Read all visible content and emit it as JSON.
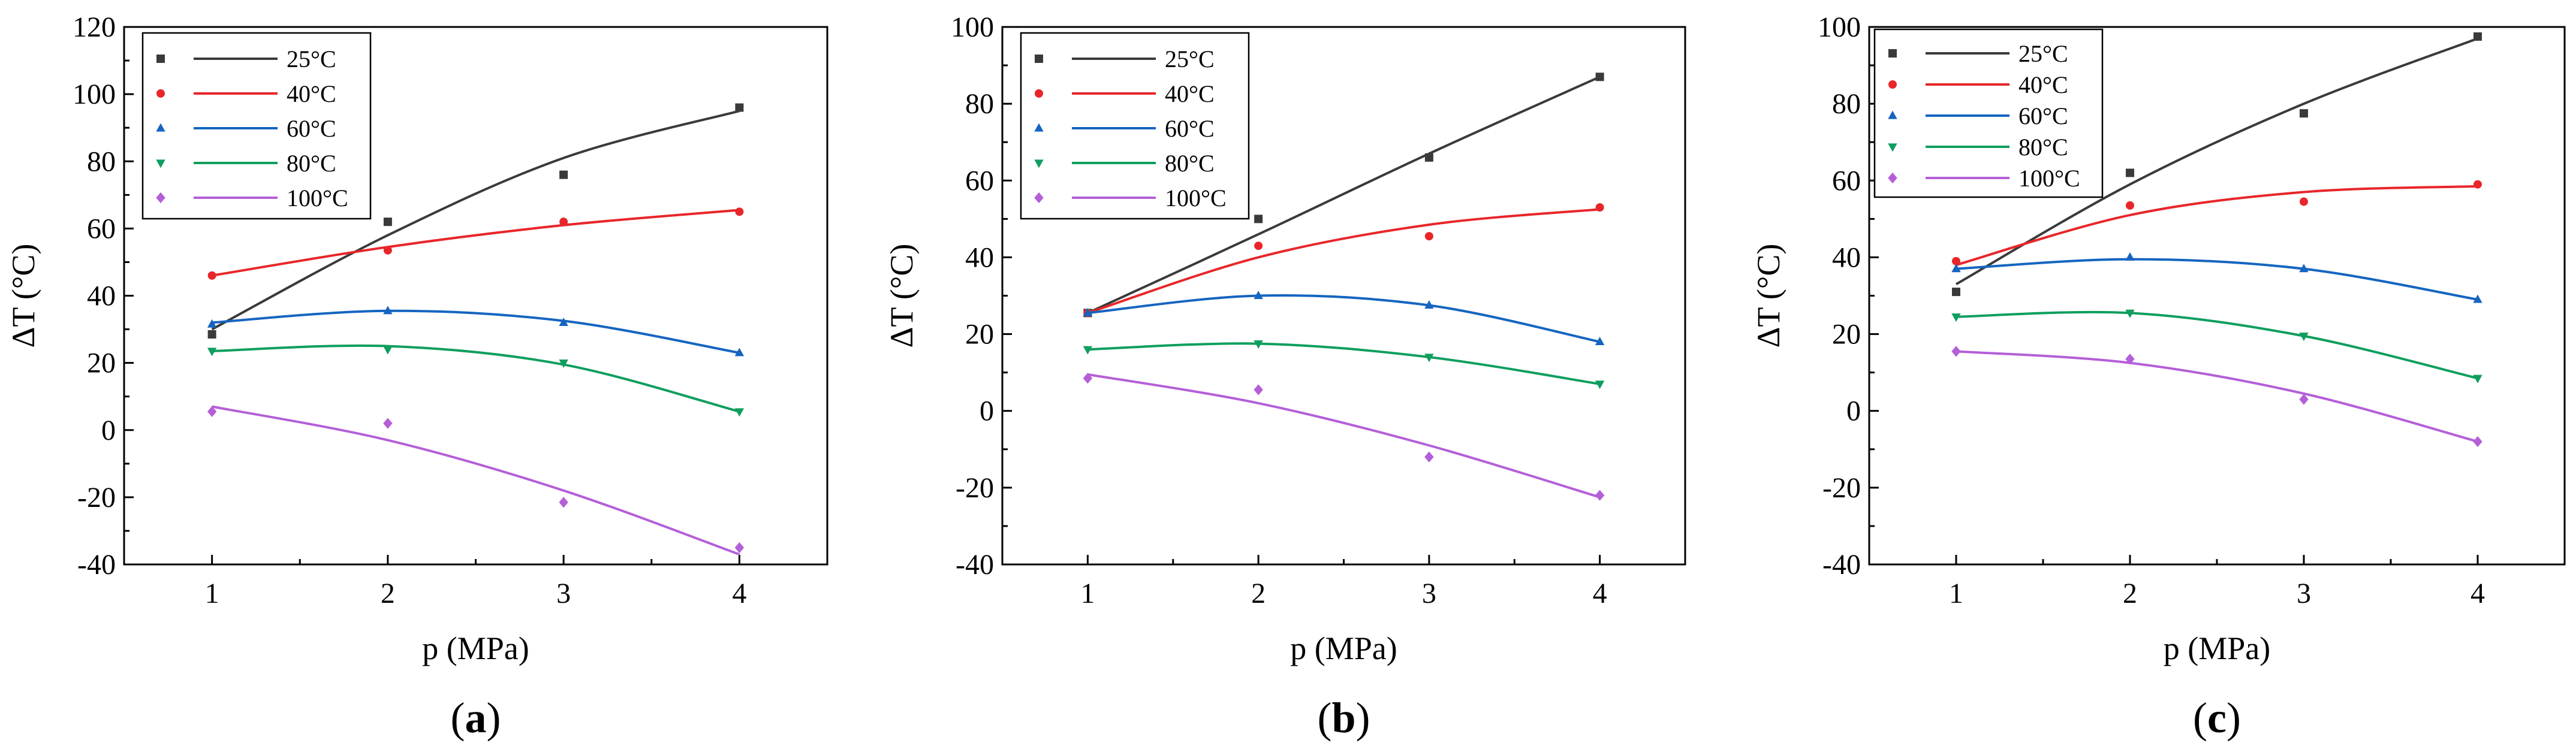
{
  "figure": {
    "panel_prefix": "(",
    "panel_suffix": ")"
  },
  "chart_data": [
    {
      "type": "scatter",
      "panel": "a",
      "xlabel": "p (MPa)",
      "ylabel": "ΔT (°C)",
      "xlim": [
        0.5,
        4.5
      ],
      "ylim": [
        -40,
        120
      ],
      "xticks": [
        1,
        2,
        3,
        4
      ],
      "yticks": [
        -40,
        -20,
        0,
        20,
        40,
        60,
        80,
        100,
        120
      ],
      "x": [
        1,
        2,
        3,
        4
      ],
      "series": [
        {
          "name": "25°C",
          "color": "#3a3a3a",
          "marker": "square",
          "values": [
            28.5,
            62,
            76,
            96
          ],
          "fit": [
            30,
            58,
            81,
            95
          ]
        },
        {
          "name": "40°C",
          "color": "#e8262a",
          "marker": "circle",
          "values": [
            46,
            53.5,
            62,
            65
          ],
          "fit": [
            46,
            54.5,
            61,
            65.5
          ]
        },
        {
          "name": "60°C",
          "color": "#1565c0",
          "marker": "triangle-up",
          "values": [
            31.5,
            35.5,
            32,
            23
          ],
          "fit": [
            32,
            35.5,
            32.5,
            23
          ]
        },
        {
          "name": "80°C",
          "color": "#0f9e5f",
          "marker": "triangle-down",
          "values": [
            23.5,
            24,
            20,
            5.5
          ],
          "fit": [
            23.5,
            25,
            19.5,
            5.5
          ]
        },
        {
          "name": "100°C",
          "color": "#b45fd8",
          "marker": "diamond",
          "values": [
            5.5,
            2,
            -21.5,
            -35
          ],
          "fit": [
            7,
            -3,
            -18,
            -37
          ]
        }
      ]
    },
    {
      "type": "scatter",
      "panel": "b",
      "xlabel": "p (MPa)",
      "ylabel": "ΔT (°C)",
      "xlim": [
        0.5,
        4.5
      ],
      "ylim": [
        -40,
        100
      ],
      "xticks": [
        1,
        2,
        3,
        4
      ],
      "yticks": [
        -40,
        -20,
        0,
        20,
        40,
        60,
        80,
        100
      ],
      "x": [
        1,
        2,
        3,
        4
      ],
      "series": [
        {
          "name": "25°C",
          "color": "#3a3a3a",
          "marker": "square",
          "values": [
            25.5,
            50,
            66,
            87
          ],
          "fit": [
            25.5,
            46,
            67,
            87
          ]
        },
        {
          "name": "40°C",
          "color": "#e8262a",
          "marker": "circle",
          "values": [
            25.5,
            43,
            45.5,
            53
          ],
          "fit": [
            25.5,
            40,
            48.5,
            52.5
          ]
        },
        {
          "name": "60°C",
          "color": "#1565c0",
          "marker": "triangle-up",
          "values": [
            25.5,
            30,
            27.5,
            18
          ],
          "fit": [
            25.5,
            30,
            27.5,
            18
          ]
        },
        {
          "name": "80°C",
          "color": "#0f9e5f",
          "marker": "triangle-down",
          "values": [
            16,
            17.5,
            14,
            7
          ],
          "fit": [
            16,
            17.5,
            14,
            7
          ]
        },
        {
          "name": "100°C",
          "color": "#b45fd8",
          "marker": "diamond",
          "values": [
            8.5,
            5.5,
            -12,
            -22
          ],
          "fit": [
            9.5,
            2,
            -9,
            -22.5
          ]
        }
      ]
    },
    {
      "type": "scatter",
      "panel": "c",
      "xlabel": "p (MPa)",
      "ylabel": "ΔT (°C)",
      "xlim": [
        0.5,
        4.5
      ],
      "ylim": [
        -40,
        100
      ],
      "xticks": [
        1,
        2,
        3,
        4
      ],
      "yticks": [
        -40,
        -20,
        0,
        20,
        40,
        60,
        80,
        100
      ],
      "x": [
        1,
        2,
        3,
        4
      ],
      "series": [
        {
          "name": "25°C",
          "color": "#3a3a3a",
          "marker": "square",
          "values": [
            31,
            62,
            77.5,
            97.5
          ],
          "fit": [
            33,
            59,
            80,
            97
          ]
        },
        {
          "name": "40°C",
          "color": "#e8262a",
          "marker": "circle",
          "values": [
            39,
            53.5,
            54.5,
            59
          ],
          "fit": [
            38,
            51,
            57,
            58.5
          ]
        },
        {
          "name": "60°C",
          "color": "#1565c0",
          "marker": "triangle-up",
          "values": [
            37,
            40,
            37,
            29
          ],
          "fit": [
            37,
            39.5,
            37,
            29
          ]
        },
        {
          "name": "80°C",
          "color": "#0f9e5f",
          "marker": "triangle-down",
          "values": [
            24.5,
            25.5,
            19.5,
            8.5
          ],
          "fit": [
            24.5,
            25.5,
            19.5,
            8.5
          ]
        },
        {
          "name": "100°C",
          "color": "#b45fd8",
          "marker": "diamond",
          "values": [
            15.5,
            13.5,
            3,
            -8
          ],
          "fit": [
            15.5,
            12.5,
            4.5,
            -8
          ]
        }
      ]
    }
  ]
}
